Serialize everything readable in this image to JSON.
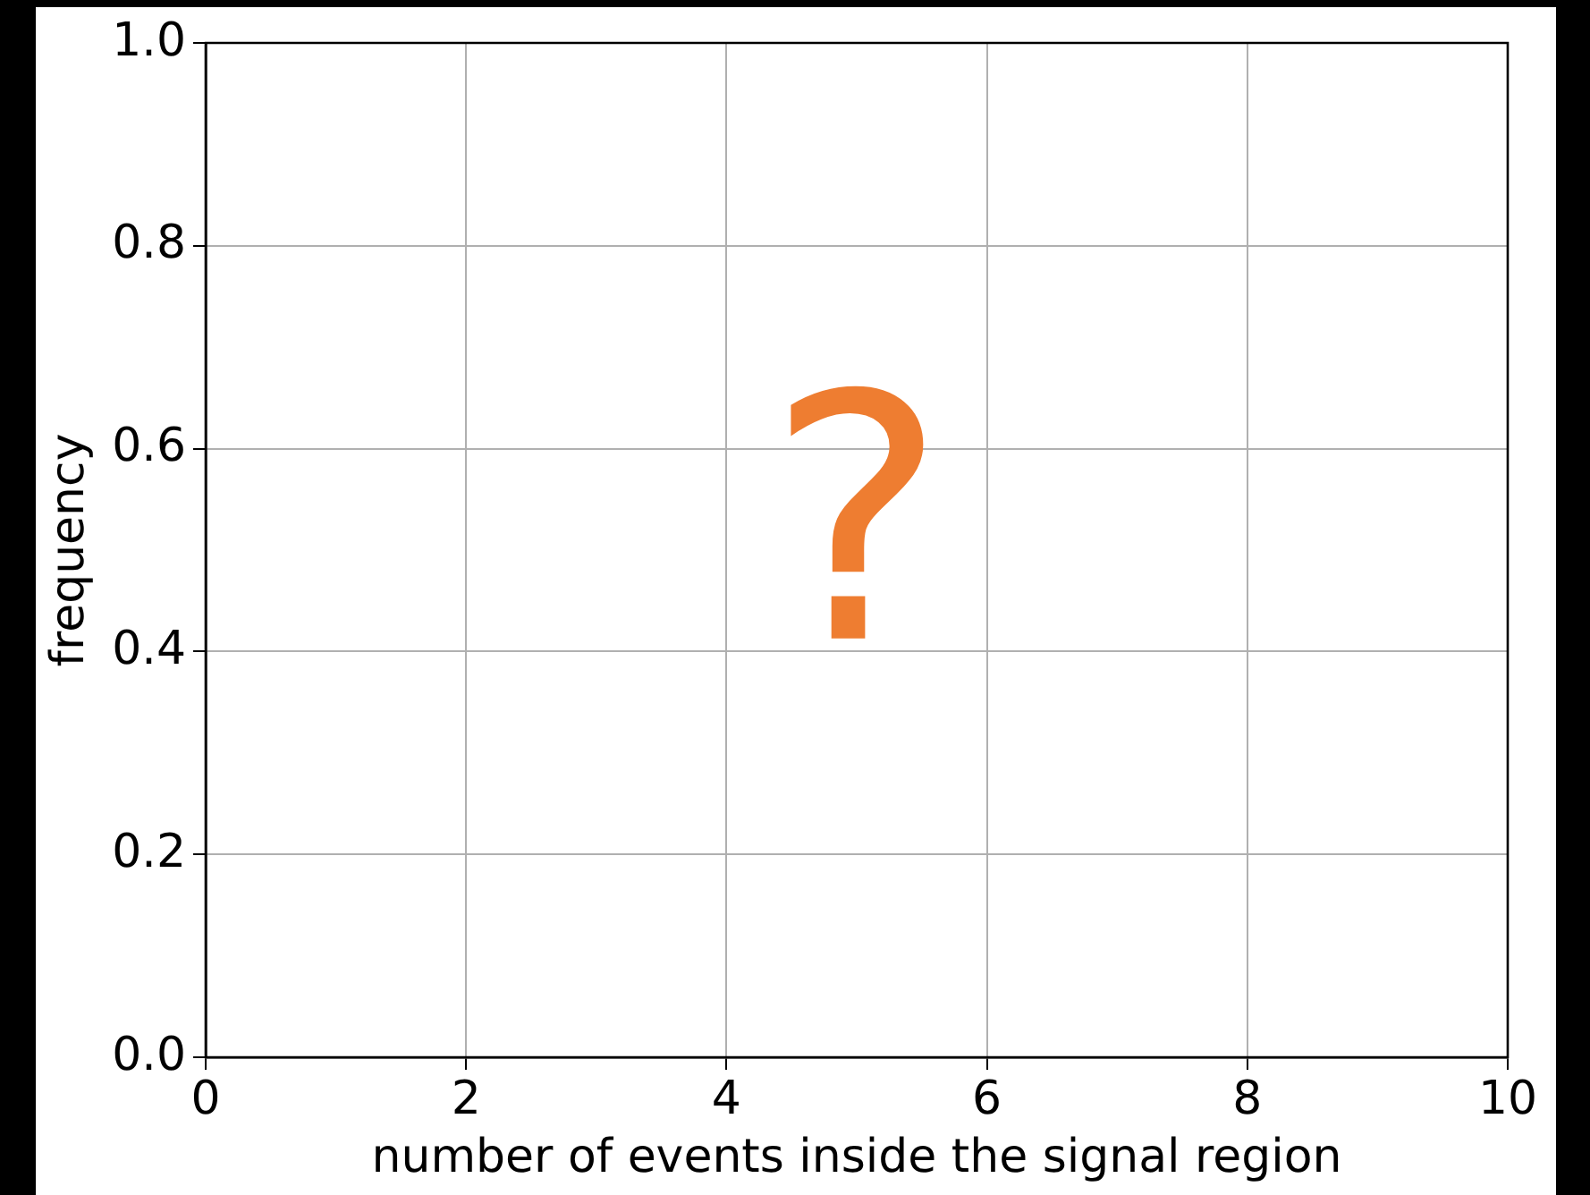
{
  "chart_data": {
    "type": "histogram",
    "xlabel": "number of events inside the signal region",
    "ylabel": "frequency",
    "xlim": [
      0,
      10
    ],
    "xticks": [
      0,
      2,
      4,
      6,
      8,
      10
    ],
    "ylim": [
      0,
      1
    ],
    "yticks": [
      {
        "value": 0,
        "label": "0.0"
      },
      {
        "value": 0.2,
        "label": "0.2"
      },
      {
        "value": 0.4,
        "label": "0.4"
      },
      {
        "value": 0.6,
        "label": "0.6"
      },
      {
        "value": 0.8,
        "label": "0.8"
      },
      {
        "value": 1,
        "label": "1.0"
      }
    ],
    "grid": true,
    "legend": false,
    "annotations": [
      "?"
    ]
  }
}
